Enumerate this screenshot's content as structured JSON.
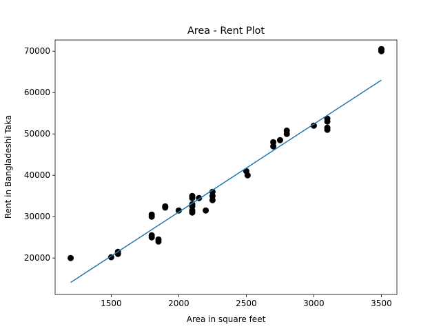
{
  "chart_data": {
    "type": "scatter",
    "title": "Area - Rent Plot",
    "xlabel": "Area in square feet",
    "ylabel": "Rent in Bangladeshi Taka",
    "xlim": [
      1085,
      3615
    ],
    "ylim": [
      11200,
      72700
    ],
    "xticks": [
      1500,
      2000,
      2500,
      3000,
      3500
    ],
    "yticks": [
      20000,
      30000,
      40000,
      50000,
      60000,
      70000
    ],
    "grid": false,
    "colors": {
      "points": "#000000",
      "fit_line": "#1f77b4"
    },
    "points": [
      [
        1200,
        20000
      ],
      [
        1500,
        20200
      ],
      [
        1550,
        21000
      ],
      [
        1550,
        21500
      ],
      [
        1800,
        30000
      ],
      [
        1800,
        30500
      ],
      [
        1800,
        25000
      ],
      [
        1800,
        25500
      ],
      [
        1850,
        24000
      ],
      [
        1850,
        24500
      ],
      [
        1900,
        32200
      ],
      [
        1900,
        32500
      ],
      [
        2000,
        31500
      ],
      [
        2100,
        31000
      ],
      [
        2100,
        31500
      ],
      [
        2100,
        32500
      ],
      [
        2100,
        33000
      ],
      [
        2100,
        34500
      ],
      [
        2100,
        35000
      ],
      [
        2150,
        34500
      ],
      [
        2200,
        31500
      ],
      [
        2250,
        34000
      ],
      [
        2250,
        35000
      ],
      [
        2250,
        36000
      ],
      [
        2500,
        41000
      ],
      [
        2510,
        40000
      ],
      [
        2700,
        47000
      ],
      [
        2700,
        48000
      ],
      [
        2750,
        48500
      ],
      [
        2800,
        50000
      ],
      [
        2800,
        50800
      ],
      [
        3000,
        52000
      ],
      [
        3100,
        51000
      ],
      [
        3100,
        51500
      ],
      [
        3100,
        53000
      ],
      [
        3100,
        53700
      ],
      [
        3500,
        70000
      ],
      [
        3500,
        70500
      ]
    ],
    "fit_line": {
      "x": [
        1200,
        3500
      ],
      "y": [
        14100,
        63000
      ]
    }
  }
}
